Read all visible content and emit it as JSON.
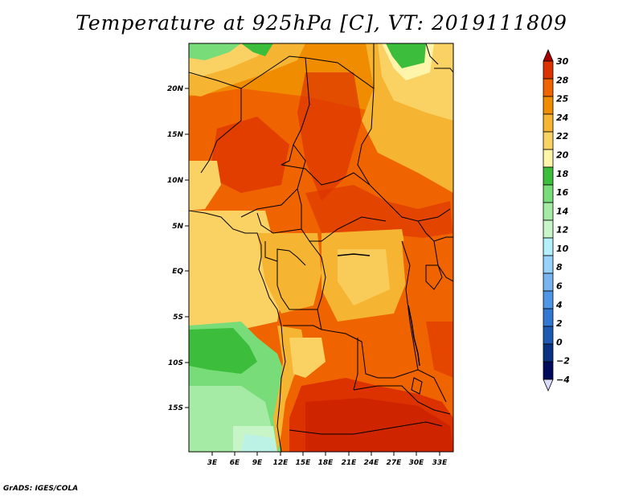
{
  "title": "Temperature at 925hPa [C], VT: 2019111809",
  "credit": "GrADS: IGES/COLA",
  "map": {
    "lat_labels": [
      "20N",
      "15N",
      "10N",
      "5N",
      "EQ",
      "5S",
      "10S",
      "15S"
    ],
    "lon_labels": [
      "3E",
      "6E",
      "9E",
      "12E",
      "15E",
      "18E",
      "21E",
      "24E",
      "27E",
      "30E",
      "33E"
    ]
  },
  "colorbar": {
    "labels": [
      "30",
      "28",
      "25",
      "24",
      "22",
      "20",
      "18",
      "16",
      "14",
      "12",
      "10",
      "8",
      "6",
      "4",
      "2",
      "0",
      "−2",
      "−4"
    ],
    "colors": [
      "#a80000",
      "#dc3200",
      "#f06400",
      "#f08c00",
      "#f5b432",
      "#fad264",
      "#fff5aa",
      "#3cbe3c",
      "#78dc78",
      "#a5eba5",
      "#c8f5c8",
      "#b4f0fa",
      "#96d2fa",
      "#78b4f0",
      "#5096e6",
      "#3278d2",
      "#1e5ab4",
      "#0a3282",
      "#000a5a",
      "#dcdcff"
    ]
  }
}
